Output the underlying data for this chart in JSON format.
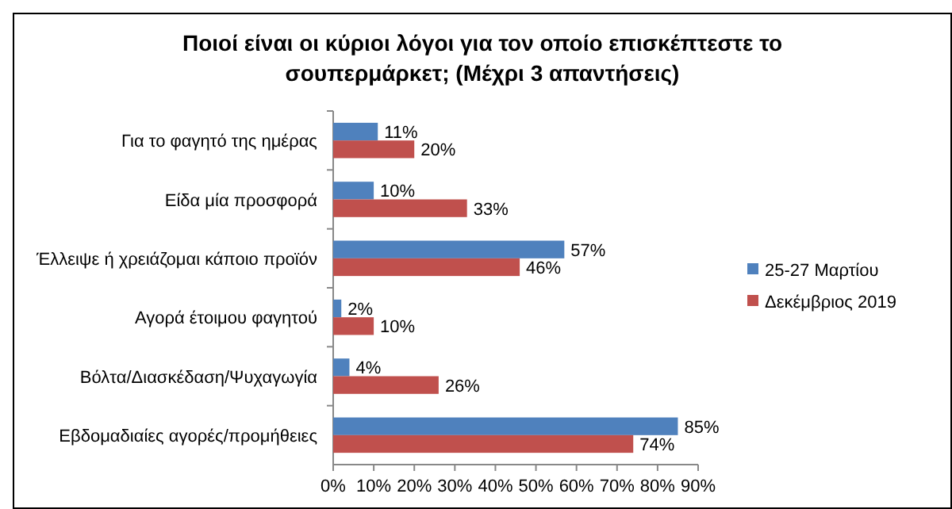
{
  "chart_data": {
    "type": "bar",
    "orientation": "horizontal",
    "title": "Ποιοί είναι οι κύριοι λόγοι για τον οποίο επισκέπτεστε το σουπερμάρκετ; (Μέχρι 3 απαντήσεις)",
    "categories": [
      "Για το φαγητό της ημέρας",
      "Είδα μία προσφορά",
      "Έλλειψε ή χρειάζομαι κάποιο προϊόν",
      "Αγορά έτοιμου φαγητού",
      "Βόλτα/Διασκέδαση/Ψυχαγωγία",
      "Εβδομαδιαίες  αγορές/προμήθειες"
    ],
    "series": [
      {
        "name": "25-27 Μαρτίου",
        "color": "#4f81bd",
        "values": [
          11,
          10,
          57,
          2,
          4,
          85
        ],
        "value_labels": [
          "11%",
          "10%",
          "57%",
          "2%",
          "4%",
          "85%"
        ]
      },
      {
        "name": "Δεκέμβριος 2019",
        "color": "#c0504d",
        "values": [
          20,
          33,
          46,
          10,
          26,
          74
        ],
        "value_labels": [
          "20%",
          "33%",
          "46%",
          "10%",
          "26%",
          "74%"
        ]
      }
    ],
    "xlim": [
      0,
      90
    ],
    "xticks": [
      {
        "value": 0,
        "label": "0%"
      },
      {
        "value": 10,
        "label": "10%"
      },
      {
        "value": 20,
        "label": "20%"
      },
      {
        "value": 30,
        "label": "30%"
      },
      {
        "value": 40,
        "label": "40%"
      },
      {
        "value": 50,
        "label": "50%"
      },
      {
        "value": 60,
        "label": "60%"
      },
      {
        "value": 70,
        "label": "70%"
      },
      {
        "value": 80,
        "label": "80%"
      },
      {
        "value": 90,
        "label": "90%"
      }
    ],
    "legend": "right"
  }
}
